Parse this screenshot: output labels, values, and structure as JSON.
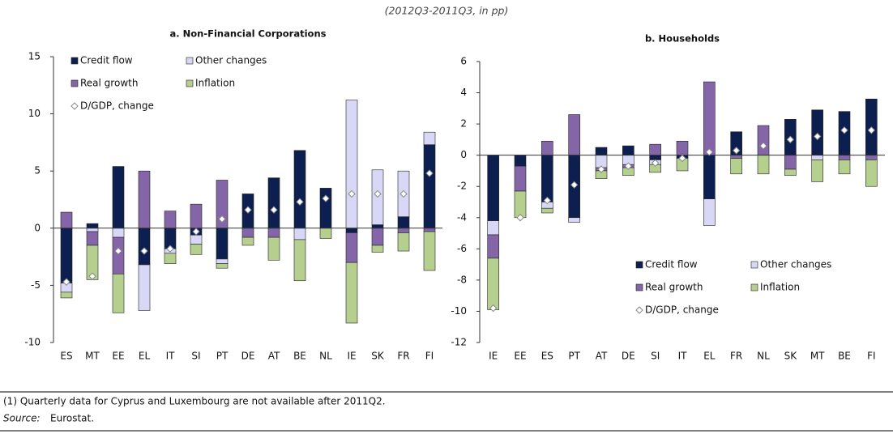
{
  "header": {
    "title": "(2012Q3-2011Q3, in pp)"
  },
  "footer": {
    "note": "(1) Quarterly data for Cyprus and Luxembourg are not available after 2011Q2.",
    "source_label": "Source:",
    "source": "Eurostat."
  },
  "chart_data": [
    {
      "type": "bar",
      "stacked": true,
      "title": "a. Non-Financial Corporations",
      "categories": [
        "ES",
        "MT",
        "EE",
        "EL",
        "IT",
        "SI",
        "PT",
        "DE",
        "AT",
        "BE",
        "NL",
        "IE",
        "SK",
        "FR",
        "FI"
      ],
      "series": [
        {
          "name": "Credit flow",
          "color": "#0d1f4f",
          "values": [
            -4.8,
            0.4,
            5.4,
            -3.2,
            -1.8,
            -0.6,
            -2.7,
            3.0,
            4.4,
            6.8,
            3.5,
            -0.4,
            0.3,
            1.0,
            7.3
          ]
        },
        {
          "name": "Other changes",
          "color": "#d8d8f6",
          "values": [
            -0.8,
            -0.3,
            -0.8,
            -4.0,
            -0.4,
            -0.8,
            -0.4,
            0,
            0,
            -1.0,
            0,
            11.2,
            4.8,
            4.0,
            1.1
          ]
        },
        {
          "name": "Real growth",
          "color": "#8466a8",
          "values": [
            1.4,
            -1.2,
            -3.2,
            5.0,
            1.5,
            2.1,
            4.2,
            -0.8,
            -0.8,
            0,
            0,
            -2.6,
            -1.5,
            -0.4,
            -0.3
          ]
        },
        {
          "name": "Inflation",
          "color": "#b5cf8f",
          "values": [
            -0.5,
            -3.0,
            -3.4,
            0,
            -0.9,
            -0.9,
            -0.4,
            -0.7,
            -2.0,
            -3.6,
            -0.9,
            -5.3,
            -0.6,
            -1.6,
            -3.4
          ]
        }
      ],
      "marker_series": {
        "name": "D/GDP, change",
        "values": [
          -4.7,
          -4.2,
          -2.0,
          -2.0,
          -1.8,
          -0.3,
          0.8,
          1.6,
          1.6,
          2.3,
          2.6,
          3.0,
          3.0,
          3.0,
          4.8
        ]
      },
      "ylim": [
        -10,
        15
      ],
      "yticks": [
        -10,
        -5,
        0,
        5,
        10,
        15
      ],
      "legend": "upper left"
    },
    {
      "type": "bar",
      "stacked": true,
      "title": "b. Households",
      "categories": [
        "IE",
        "EE",
        "ES",
        "PT",
        "AT",
        "DE",
        "SI",
        "IT",
        "EL",
        "FR",
        "NL",
        "SK",
        "MT",
        "BE",
        "FI"
      ],
      "series": [
        {
          "name": "Credit flow",
          "color": "#0d1f4f",
          "values": [
            -4.2,
            -0.7,
            -3.0,
            -4.0,
            0.5,
            0.6,
            -0.3,
            -0.2,
            -2.8,
            1.5,
            0,
            2.3,
            2.9,
            2.8,
            3.6
          ]
        },
        {
          "name": "Other changes",
          "color": "#d8d8f6",
          "values": [
            -0.9,
            0,
            -0.4,
            -0.3,
            -0.8,
            -0.6,
            -0.3,
            0,
            -1.7,
            0,
            0,
            0,
            -0.3,
            0,
            0
          ]
        },
        {
          "name": "Real growth",
          "color": "#8466a8",
          "values": [
            -1.5,
            -1.6,
            0.9,
            2.6,
            -0.2,
            -0.2,
            0.7,
            0.9,
            4.7,
            -0.2,
            1.9,
            -0.9,
            0,
            -0.3,
            -0.3
          ]
        },
        {
          "name": "Inflation",
          "color": "#b5cf8f",
          "values": [
            -3.3,
            -1.7,
            -0.3,
            0,
            -0.5,
            -0.5,
            -0.5,
            -0.8,
            0,
            -1.0,
            -1.2,
            -0.4,
            -1.4,
            -0.9,
            -1.7
          ]
        }
      ],
      "marker_series": {
        "name": "D/GDP, change",
        "values": [
          -9.8,
          -4.0,
          -2.9,
          -1.9,
          -0.9,
          -0.7,
          -0.5,
          -0.2,
          0.2,
          0.3,
          0.6,
          1.0,
          1.2,
          1.6,
          1.6
        ]
      },
      "ylim": [
        -12,
        6
      ],
      "yticks": [
        -12,
        -10,
        -8,
        -6,
        -4,
        -2,
        0,
        2,
        4,
        6
      ],
      "legend": "lower right"
    }
  ]
}
